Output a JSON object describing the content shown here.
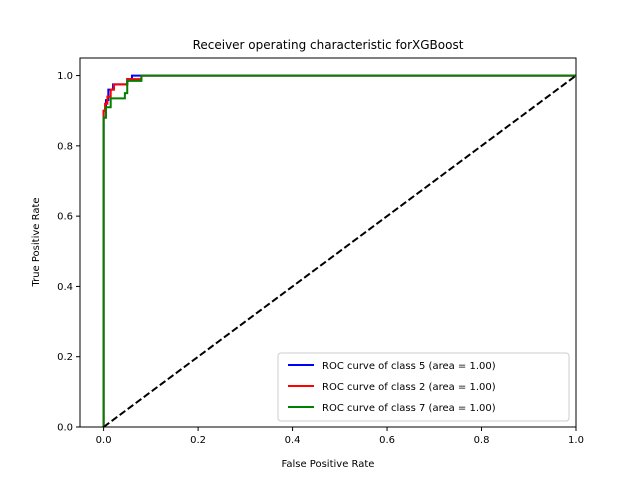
{
  "chart_data": {
    "type": "line",
    "title": "Receiver operating characteristic forXGBoost",
    "xlabel": "False Positive Rate",
    "ylabel": "True Positive Rate",
    "xlim": [
      -0.05,
      1.0
    ],
    "ylim": [
      0.0,
      1.05
    ],
    "xticks": [
      0.0,
      0.2,
      0.4,
      0.6,
      0.8,
      1.0
    ],
    "yticks": [
      0.0,
      0.2,
      0.4,
      0.6,
      0.8,
      1.0
    ],
    "xtick_labels": [
      "0.0",
      "0.2",
      "0.4",
      "0.6",
      "0.8",
      "1.0"
    ],
    "ytick_labels": [
      "0.0",
      "0.2",
      "0.4",
      "0.6",
      "0.8",
      "1.0"
    ],
    "grid": false,
    "legend_position": "lower-right",
    "series": [
      {
        "name": "ROC curve of class 5 (area = 1.00)",
        "color": "#0000ff",
        "style": "solid",
        "x": [
          0,
          0,
          0.005,
          0.005,
          0.01,
          0.01,
          0.02,
          0.02,
          0.05,
          0.05,
          0.06,
          0.06,
          1.0
        ],
        "y": [
          0,
          0.9,
          0.9,
          0.93,
          0.93,
          0.96,
          0.96,
          0.975,
          0.975,
          0.99,
          0.99,
          1.0,
          1.0
        ]
      },
      {
        "name": "ROC curve of class 2 (area = 1.00)",
        "color": "#ff0000",
        "style": "solid",
        "x": [
          0,
          0,
          0.003,
          0.003,
          0.008,
          0.008,
          0.015,
          0.015,
          0.022,
          0.022,
          0.05,
          0.05,
          0.08,
          0.08,
          1.0
        ],
        "y": [
          0,
          0.9,
          0.9,
          0.92,
          0.92,
          0.94,
          0.94,
          0.96,
          0.96,
          0.975,
          0.975,
          0.99,
          0.99,
          1.0,
          1.0
        ]
      },
      {
        "name": "ROC curve of class 7 (area = 1.00)",
        "color": "#008000",
        "style": "solid",
        "x": [
          0,
          0,
          0.005,
          0.005,
          0.015,
          0.015,
          0.045,
          0.045,
          0.05,
          0.05,
          0.08,
          0.08,
          1.0
        ],
        "y": [
          0,
          0.88,
          0.88,
          0.91,
          0.91,
          0.935,
          0.935,
          0.95,
          0.95,
          0.985,
          0.985,
          1.0,
          1.0
        ]
      },
      {
        "name": "",
        "color": "#000000",
        "style": "dashed",
        "x": [
          0.0,
          1.0
        ],
        "y": [
          0.0,
          1.0
        ]
      }
    ]
  }
}
